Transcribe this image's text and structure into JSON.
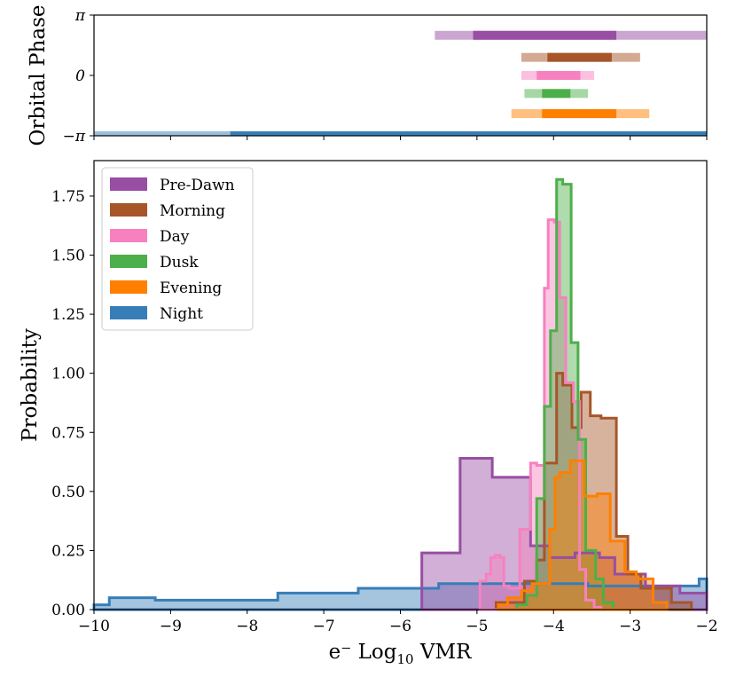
{
  "chart_data": [
    {
      "type": "range-bar",
      "ylabel": "Orbital Phase",
      "xlim": [
        -10,
        -2
      ],
      "ylim": [
        -3.14159,
        3.14159
      ],
      "ytick_values": [
        3.14159,
        0,
        -3.14159
      ],
      "ytick_labels": [
        "π",
        "0",
        "−π"
      ],
      "colors": {
        "Pre-Dawn": "#984ea3",
        "Morning": "#a65628",
        "Day": "#f781bf",
        "Dusk": "#4daf4a",
        "Evening": "#ff7f00",
        "Night": "#377eb8"
      },
      "bars": [
        {
          "name": "Pre-Dawn",
          "phase": 2.09,
          "outer": [
            -5.55,
            -2.0
          ],
          "inner": [
            -5.05,
            -3.18
          ]
        },
        {
          "name": "Morning",
          "phase": 0.94,
          "outer": [
            -4.42,
            -2.87
          ],
          "inner": [
            -4.08,
            -3.24
          ]
        },
        {
          "name": "Day",
          "phase": 0.0,
          "outer": [
            -4.42,
            -3.47
          ],
          "inner": [
            -4.22,
            -3.65
          ]
        },
        {
          "name": "Dusk",
          "phase": -0.94,
          "outer": [
            -4.38,
            -3.55
          ],
          "inner": [
            -4.15,
            -3.78
          ]
        },
        {
          "name": "Evening",
          "phase": -1.99,
          "outer": [
            -4.55,
            -2.75
          ],
          "inner": [
            -4.15,
            -3.18
          ]
        },
        {
          "name": "Night",
          "phase": -3.14159,
          "outer": [
            -10.0,
            -2.0
          ],
          "inner": [
            -8.22,
            -2.0
          ]
        }
      ]
    },
    {
      "type": "step-histogram",
      "xlabel": "e⁻ Log",
      "xlabel_sub": "10",
      "xlabel_suffix": " VMR",
      "ylabel": "Probability",
      "xlim": [
        -10,
        -2
      ],
      "ylim": [
        0,
        1.9
      ],
      "xticks": [
        -10,
        -9,
        -8,
        -7,
        -6,
        -5,
        -4,
        -3,
        -2
      ],
      "xtick_labels": [
        "−10",
        "−9",
        "−8",
        "−7",
        "−6",
        "−5",
        "−4",
        "−3",
        "−2"
      ],
      "yticks": [
        0,
        0.25,
        0.5,
        0.75,
        1.0,
        1.25,
        1.5,
        1.75
      ],
      "ytick_labels": [
        "0.00",
        "0.25",
        "0.50",
        "0.75",
        "1.00",
        "1.25",
        "1.50",
        "1.75"
      ],
      "legend": [
        "Pre-Dawn",
        "Morning",
        "Day",
        "Dusk",
        "Evening",
        "Night"
      ],
      "legend_placement": "top-left",
      "series": [
        {
          "name": "Night",
          "color": "#377eb8",
          "edges": [
            -10,
            -9.8,
            -9.2,
            -8.2,
            -7.6,
            -6.55,
            -5.5,
            -4.55,
            -3.55,
            -2.1,
            -2
          ],
          "values": [
            0.02,
            0.05,
            0.04,
            0.04,
            0.07,
            0.09,
            0.11,
            0.11,
            0.1,
            0.13
          ]
        },
        {
          "name": "Pre-Dawn",
          "color": "#984ea3",
          "edges": [
            -5.72,
            -5.22,
            -4.8,
            -4.3,
            -4.05,
            -3.72,
            -3.4,
            -3.2,
            -2.8,
            -2.35,
            -2
          ],
          "values": [
            0.24,
            0.64,
            0.56,
            0.27,
            0.22,
            0.24,
            0.22,
            0.15,
            0.1,
            0.07
          ]
        },
        {
          "name": "Morning",
          "color": "#a65628",
          "edges": [
            -4.75,
            -4.38,
            -4.22,
            -4.12,
            -3.96,
            -3.88,
            -3.76,
            -3.64,
            -3.52,
            -3.38,
            -3.18,
            -3.03,
            -2.86,
            -2.46,
            -2.2
          ],
          "values": [
            0.03,
            0.12,
            0.21,
            0.62,
            1.0,
            0.95,
            0.77,
            0.92,
            0.82,
            0.81,
            0.31,
            0.15,
            0.09,
            0.03
          ]
        },
        {
          "name": "Day",
          "color": "#f781bf",
          "edges": [
            -4.96,
            -4.88,
            -4.82,
            -4.76,
            -4.7,
            -4.65,
            -4.58,
            -4.44,
            -4.3,
            -4.22,
            -4.12,
            -4.07,
            -3.99,
            -3.92,
            -3.84,
            -3.74,
            -3.66,
            -3.58,
            -3.47,
            -3.38
          ],
          "values": [
            0.12,
            0.15,
            0.22,
            0.23,
            0.22,
            0.1,
            0.09,
            0.34,
            0.62,
            0.61,
            1.36,
            1.65,
            1.64,
            1.32,
            0.96,
            0.88,
            0.17,
            0.04,
            0.01
          ]
        },
        {
          "name": "Dusk",
          "color": "#4daf4a",
          "edges": [
            -4.48,
            -4.35,
            -4.22,
            -4.12,
            -4.04,
            -3.96,
            -3.88,
            -3.77,
            -3.68,
            -3.58,
            -3.45,
            -3.35,
            -3.22
          ],
          "values": [
            0.02,
            0.06,
            0.47,
            0.86,
            1.18,
            1.82,
            1.8,
            1.13,
            0.72,
            0.25,
            0.13,
            0.03
          ]
        },
        {
          "name": "Evening",
          "color": "#ff7f00",
          "edges": [
            -4.72,
            -4.6,
            -4.42,
            -4.28,
            -4.05,
            -3.98,
            -3.92,
            -3.78,
            -3.6,
            -3.43,
            -3.26,
            -3.07,
            -2.92,
            -2.7,
            -2.52
          ],
          "values": [
            0.02,
            0.05,
            0.08,
            0.11,
            0.34,
            0.56,
            0.58,
            0.63,
            0.48,
            0.49,
            0.29,
            0.16,
            0.13,
            0.03
          ]
        }
      ]
    }
  ]
}
